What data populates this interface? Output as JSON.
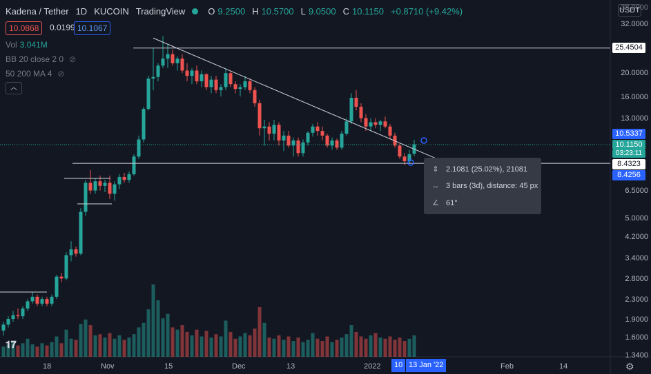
{
  "header": {
    "symbol": "Kadena / Tether",
    "interval": "1D",
    "exchange": "KUCOIN",
    "platform": "TradingView",
    "o_label": "O",
    "o_value": "9.2500",
    "h_label": "H",
    "h_value": "10.5700",
    "l_label": "L",
    "l_value": "9.0500",
    "c_label": "C",
    "c_value": "10.1150",
    "change": "+0.8710 (+9.42%)"
  },
  "quote": {
    "bid": "10.0868",
    "spread": "0.0199",
    "ask": "10.1067"
  },
  "indicators": {
    "vol_label": "Vol",
    "vol_value": "3.041M",
    "bb_label": "BB 20 close 2 0",
    "ma_label": "50 200 MA 4"
  },
  "currency_button": "USDT",
  "price_axis": {
    "ticks": [
      "38.0000",
      "32.0000",
      "20.0000",
      "16.0000",
      "13.0000",
      "6.5000",
      "5.0000",
      "4.2000",
      "3.4000",
      "2.8000",
      "2.3000",
      "1.9000",
      "1.6000",
      "1.3400"
    ],
    "tags": {
      "upper_line": "25.4504",
      "alert": "10.5337",
      "last_price": "10.1150",
      "countdown": "03:23:11",
      "lower_line": "8.4323",
      "cursor": "8.4256"
    }
  },
  "time_axis": {
    "labels": [
      "18",
      "Nov",
      "15",
      "Dec",
      "13",
      "2022",
      "Feb",
      "14"
    ],
    "highlight": [
      "10",
      "13 Jan '22"
    ]
  },
  "measure_tooltip": {
    "change": "2.1081 (25.02%), 21081",
    "bars": "3 bars (3d), distance: 45 px",
    "angle": "61°"
  },
  "colors": {
    "up": "#26a69a",
    "down": "#ef5350",
    "background": "#131722",
    "accent": "#2962ff"
  },
  "chart_data": {
    "type": "candlestick",
    "scale": "log",
    "ylim": [
      1.34,
      38.0
    ],
    "up_color": "#26a69a",
    "down_color": "#ef5350",
    "candles": [
      [
        1.7,
        1.85,
        1.62,
        1.8
      ],
      [
        1.8,
        1.95,
        1.75,
        1.9
      ],
      [
        1.9,
        2.05,
        1.85,
        1.97
      ],
      [
        1.97,
        2.1,
        1.9,
        1.95
      ],
      [
        1.95,
        2.15,
        1.9,
        2.1
      ],
      [
        2.1,
        2.3,
        2.05,
        2.25
      ],
      [
        2.25,
        2.45,
        2.2,
        2.35
      ],
      [
        2.35,
        2.4,
        2.15,
        2.2
      ],
      [
        2.2,
        2.35,
        2.15,
        2.3
      ],
      [
        2.3,
        2.35,
        2.15,
        2.2
      ],
      [
        2.2,
        2.4,
        2.15,
        2.35
      ],
      [
        2.35,
        2.9,
        2.3,
        2.85
      ],
      [
        2.85,
        2.95,
        2.7,
        2.8
      ],
      [
        2.8,
        3.6,
        2.75,
        3.5
      ],
      [
        3.5,
        4.0,
        3.3,
        3.7
      ],
      [
        3.7,
        3.8,
        3.45,
        3.55
      ],
      [
        3.55,
        5.5,
        3.5,
        5.3
      ],
      [
        5.3,
        7.2,
        5.1,
        7.0
      ],
      [
        7.0,
        7.9,
        6.3,
        6.5
      ],
      [
        6.5,
        7.3,
        6.3,
        7.1
      ],
      [
        7.1,
        7.5,
        6.5,
        6.8
      ],
      [
        6.8,
        7.2,
        6.4,
        7.0
      ],
      [
        7.0,
        7.5,
        6.0,
        6.3
      ],
      [
        6.3,
        7.1,
        5.9,
        6.9
      ],
      [
        6.9,
        7.6,
        6.6,
        7.4
      ],
      [
        7.4,
        7.7,
        7.0,
        7.2
      ],
      [
        7.2,
        7.8,
        7.0,
        7.6
      ],
      [
        7.6,
        9.2,
        7.5,
        9.0
      ],
      [
        9.0,
        11.0,
        8.8,
        10.6
      ],
      [
        10.6,
        14.5,
        10.3,
        14.2
      ],
      [
        14.2,
        19.5,
        14.0,
        19.0
      ],
      [
        19.0,
        25.5,
        17.0,
        19.3
      ],
      [
        19.3,
        22.0,
        18.5,
        21.5
      ],
      [
        21.5,
        28.5,
        21.0,
        23.0
      ],
      [
        23.0,
        26.5,
        21.0,
        24.0
      ],
      [
        24.0,
        25.0,
        21.5,
        22.0
      ],
      [
        22.0,
        23.5,
        20.5,
        23.0
      ],
      [
        23.0,
        24.0,
        20.0,
        20.5
      ],
      [
        20.5,
        22.0,
        18.5,
        19.5
      ],
      [
        19.5,
        21.0,
        18.0,
        20.5
      ],
      [
        20.5,
        21.5,
        18.0,
        18.5
      ],
      [
        18.5,
        20.5,
        17.5,
        19.8
      ],
      [
        19.8,
        20.0,
        17.0,
        17.5
      ],
      [
        17.5,
        19.5,
        16.5,
        18.8
      ],
      [
        18.8,
        19.5,
        16.5,
        17.0
      ],
      [
        17.0,
        18.0,
        16.0,
        17.5
      ],
      [
        17.5,
        21.0,
        17.0,
        20.0
      ],
      [
        20.0,
        20.5,
        17.5,
        18.0
      ],
      [
        18.0,
        18.5,
        16.5,
        17.2
      ],
      [
        17.2,
        18.0,
        16.0,
        17.5
      ],
      [
        17.5,
        19.5,
        17.0,
        18.5
      ],
      [
        18.5,
        19.0,
        16.5,
        17.0
      ],
      [
        17.0,
        17.5,
        14.5,
        15.0
      ],
      [
        15.0,
        15.5,
        11.0,
        11.8
      ],
      [
        11.8,
        12.8,
        10.0,
        12.0
      ],
      [
        12.0,
        12.5,
        10.5,
        11.2
      ],
      [
        11.2,
        12.8,
        10.5,
        12.2
      ],
      [
        12.2,
        12.5,
        10.0,
        10.5
      ],
      [
        10.5,
        11.5,
        9.5,
        11.0
      ],
      [
        11.0,
        11.5,
        9.8,
        10.0
      ],
      [
        10.0,
        10.8,
        9.0,
        10.5
      ],
      [
        10.5,
        10.8,
        9.0,
        9.3
      ],
      [
        9.3,
        10.6,
        9.0,
        10.3
      ],
      [
        10.3,
        11.5,
        10.0,
        11.3
      ],
      [
        11.3,
        12.3,
        10.9,
        12.0
      ],
      [
        12.0,
        12.5,
        11.0,
        11.5
      ],
      [
        11.5,
        12.0,
        10.5,
        11.0
      ],
      [
        11.0,
        11.2,
        9.8,
        10.0
      ],
      [
        10.0,
        10.8,
        9.6,
        10.5
      ],
      [
        10.5,
        10.7,
        9.6,
        9.8
      ],
      [
        9.8,
        11.5,
        9.6,
        11.2
      ],
      [
        11.2,
        13.0,
        11.0,
        12.6
      ],
      [
        12.6,
        16.5,
        12.3,
        15.8
      ],
      [
        15.8,
        17.0,
        14.0,
        14.5
      ],
      [
        14.5,
        15.0,
        12.5,
        13.0
      ],
      [
        13.0,
        13.5,
        11.5,
        12.0
      ],
      [
        12.0,
        13.0,
        11.5,
        12.5
      ],
      [
        12.5,
        13.0,
        11.8,
        12.2
      ],
      [
        12.2,
        12.8,
        11.5,
        12.6
      ],
      [
        12.6,
        13.2,
        11.8,
        12.0
      ],
      [
        12.0,
        12.3,
        10.6,
        11.0
      ],
      [
        11.0,
        11.3,
        9.8,
        10.0
      ],
      [
        10.0,
        10.2,
        8.8,
        9.0
      ],
      [
        9.0,
        9.3,
        8.3,
        8.6
      ],
      [
        8.6,
        9.6,
        8.4,
        9.2
      ],
      [
        9.25,
        10.57,
        9.05,
        10.115
      ]
    ],
    "volume": [
      0.9,
      1.1,
      1.3,
      1.0,
      1.2,
      1.6,
      1.1,
      0.9,
      1.2,
      1.0,
      1.3,
      1.8,
      1.2,
      2.4,
      1.6,
      1.5,
      2.9,
      3.3,
      2.8,
      1.9,
      2.0,
      1.7,
      2.1,
      1.6,
      1.9,
      1.5,
      1.7,
      2.0,
      2.6,
      3.0,
      4.2,
      6.4,
      5.0,
      3.4,
      3.8,
      2.6,
      2.4,
      2.8,
      2.2,
      1.9,
      2.4,
      1.8,
      2.3,
      1.7,
      2.0,
      1.8,
      3.2,
      2.2,
      1.6,
      1.8,
      2.1,
      1.9,
      2.5,
      4.4,
      3.0,
      1.7,
      1.6,
      1.9,
      1.5,
      1.8,
      1.4,
      1.7,
      1.3,
      1.5,
      2.1,
      1.6,
      1.4,
      1.8,
      1.3,
      1.5,
      1.7,
      2.0,
      2.8,
      2.2,
      1.8,
      1.6,
      1.9,
      2.1,
      1.7,
      1.6,
      1.8,
      1.5,
      1.7,
      1.4,
      1.6,
      1.9
    ],
    "horizontal_lines": [
      25.4504,
      8.4323
    ],
    "trendline": {
      "from": [
        31,
        28.0
      ],
      "to": [
        86,
        8.6
      ]
    }
  }
}
